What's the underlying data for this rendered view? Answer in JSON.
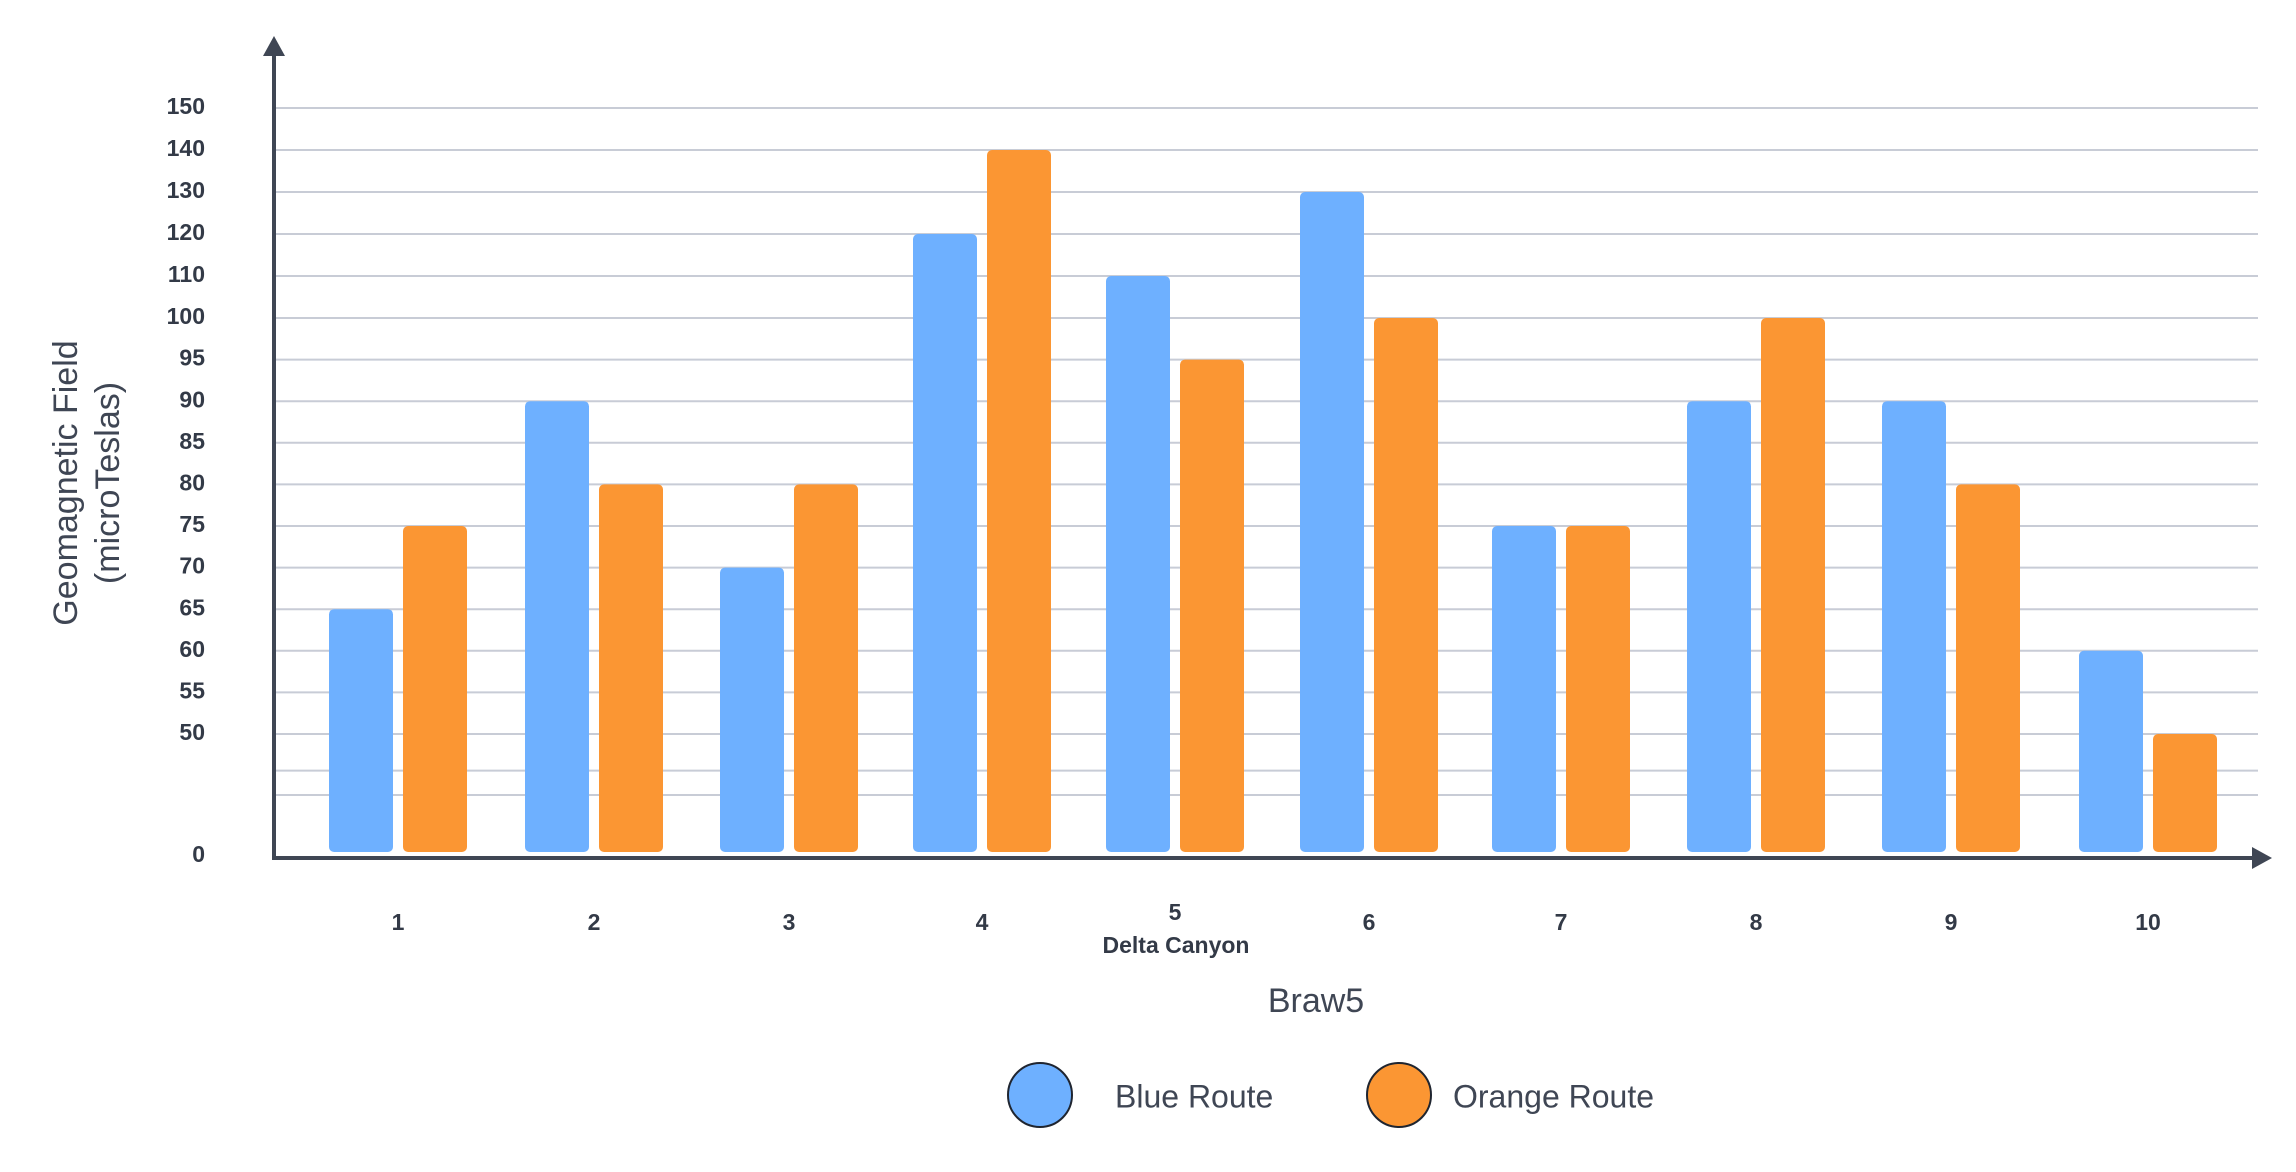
{
  "chart_data": {
    "type": "bar",
    "title": "",
    "xlabel": "Braw5",
    "ylabel": "Geomagnetic Field (microTeslas)",
    "ylabel_lines": [
      "Geomagnetic Field",
      "(microTeslas)"
    ],
    "ytick_labels": [
      "0",
      "50",
      "55",
      "60",
      "65",
      "70",
      "75",
      "80",
      "85",
      "90",
      "95",
      "100",
      "110",
      "120",
      "130",
      "140",
      "150"
    ],
    "categories": [
      "1",
      "2",
      "3",
      "4",
      "5",
      "6",
      "7",
      "8",
      "9",
      "10"
    ],
    "category_annotation": {
      "category": "5",
      "text": "Delta Canyon"
    },
    "series": [
      {
        "name": "Blue Route",
        "color": "#6eb0ff",
        "values": [
          65,
          90,
          70,
          120,
          110,
          130,
          75,
          90,
          90,
          60
        ]
      },
      {
        "name": "Orange Route",
        "color": "#fb9633",
        "values": [
          75,
          80,
          80,
          140,
          95,
          100,
          75,
          100,
          80,
          50
        ]
      }
    ],
    "ylim": [
      0,
      150
    ],
    "grid": true,
    "legend": "bottom-center"
  }
}
